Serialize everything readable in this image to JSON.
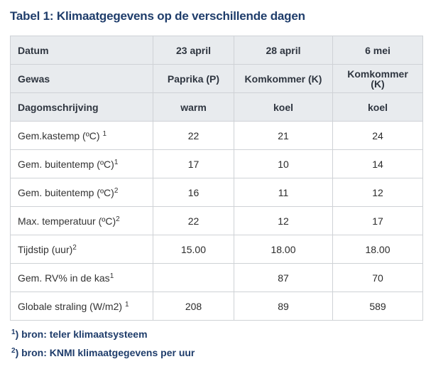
{
  "title": "Tabel 1: Klimaatgegevens op de verschillende dagen",
  "header_rows": [
    {
      "label": "Datum",
      "values": [
        "23 april",
        "28 april",
        "6 mei"
      ]
    },
    {
      "label": "Gewas",
      "values": [
        "Paprika (P)",
        "Komkommer (K)",
        "Komkommer (K)"
      ]
    },
    {
      "label": "Dagomschrijving",
      "values": [
        "warm",
        "koel",
        "koel"
      ]
    }
  ],
  "rows": [
    {
      "label": "Gem.kastemp (ºC) ",
      "sup": "1",
      "values": [
        "22",
        "21",
        "24"
      ]
    },
    {
      "label": "Gem. buitentemp (ºC)",
      "sup": "1",
      "values": [
        "17",
        "10",
        "14"
      ]
    },
    {
      "label": "Gem. buitentemp (ºC)",
      "sup": "2",
      "values": [
        "16",
        "11",
        "12"
      ]
    },
    {
      "label": "Max. temperatuur  (ºC)",
      "sup": "2",
      "values": [
        "22",
        "12",
        "17"
      ]
    },
    {
      "label": "Tijdstip (uur)",
      "sup": "2",
      "values": [
        "15.00",
        "18.00",
        "18.00"
      ]
    },
    {
      "label": "Gem. RV% in de kas",
      "sup": "1",
      "values": [
        "",
        "87",
        "70"
      ]
    },
    {
      "label": "Globale straling (W/m2) ",
      "sup": "1",
      "values": [
        "208",
        "89",
        "589"
      ]
    }
  ],
  "footnotes": [
    {
      "mark": "1",
      "text": ") bron: teler klimaatsysteem"
    },
    {
      "mark": "2",
      "text": ") bron: KNMI klimaatgegevens per uur"
    }
  ]
}
